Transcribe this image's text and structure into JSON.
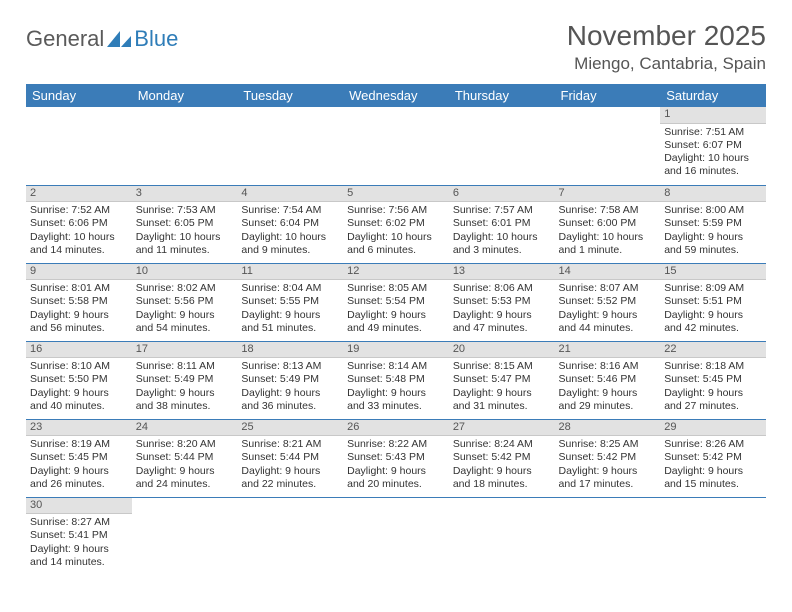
{
  "logo": {
    "part1": "General",
    "part2": "Blue"
  },
  "title": "November 2025",
  "location": "Miengo, Cantabria, Spain",
  "colors": {
    "header_bg": "#3b7cb8",
    "header_text": "#ffffff",
    "daynum_bg": "#e2e2e2",
    "row_border": "#3b7cb8",
    "logo_gray": "#5a5a5a",
    "logo_blue": "#2f7db8"
  },
  "weekdays": [
    "Sunday",
    "Monday",
    "Tuesday",
    "Wednesday",
    "Thursday",
    "Friday",
    "Saturday"
  ],
  "weeks": [
    [
      null,
      null,
      null,
      null,
      null,
      null,
      {
        "n": "1",
        "sr": "Sunrise: 7:51 AM",
        "ss": "Sunset: 6:07 PM",
        "dl": "Daylight: 10 hours and 16 minutes."
      }
    ],
    [
      {
        "n": "2",
        "sr": "Sunrise: 7:52 AM",
        "ss": "Sunset: 6:06 PM",
        "dl": "Daylight: 10 hours and 14 minutes."
      },
      {
        "n": "3",
        "sr": "Sunrise: 7:53 AM",
        "ss": "Sunset: 6:05 PM",
        "dl": "Daylight: 10 hours and 11 minutes."
      },
      {
        "n": "4",
        "sr": "Sunrise: 7:54 AM",
        "ss": "Sunset: 6:04 PM",
        "dl": "Daylight: 10 hours and 9 minutes."
      },
      {
        "n": "5",
        "sr": "Sunrise: 7:56 AM",
        "ss": "Sunset: 6:02 PM",
        "dl": "Daylight: 10 hours and 6 minutes."
      },
      {
        "n": "6",
        "sr": "Sunrise: 7:57 AM",
        "ss": "Sunset: 6:01 PM",
        "dl": "Daylight: 10 hours and 3 minutes."
      },
      {
        "n": "7",
        "sr": "Sunrise: 7:58 AM",
        "ss": "Sunset: 6:00 PM",
        "dl": "Daylight: 10 hours and 1 minute."
      },
      {
        "n": "8",
        "sr": "Sunrise: 8:00 AM",
        "ss": "Sunset: 5:59 PM",
        "dl": "Daylight: 9 hours and 59 minutes."
      }
    ],
    [
      {
        "n": "9",
        "sr": "Sunrise: 8:01 AM",
        "ss": "Sunset: 5:58 PM",
        "dl": "Daylight: 9 hours and 56 minutes."
      },
      {
        "n": "10",
        "sr": "Sunrise: 8:02 AM",
        "ss": "Sunset: 5:56 PM",
        "dl": "Daylight: 9 hours and 54 minutes."
      },
      {
        "n": "11",
        "sr": "Sunrise: 8:04 AM",
        "ss": "Sunset: 5:55 PM",
        "dl": "Daylight: 9 hours and 51 minutes."
      },
      {
        "n": "12",
        "sr": "Sunrise: 8:05 AM",
        "ss": "Sunset: 5:54 PM",
        "dl": "Daylight: 9 hours and 49 minutes."
      },
      {
        "n": "13",
        "sr": "Sunrise: 8:06 AM",
        "ss": "Sunset: 5:53 PM",
        "dl": "Daylight: 9 hours and 47 minutes."
      },
      {
        "n": "14",
        "sr": "Sunrise: 8:07 AM",
        "ss": "Sunset: 5:52 PM",
        "dl": "Daylight: 9 hours and 44 minutes."
      },
      {
        "n": "15",
        "sr": "Sunrise: 8:09 AM",
        "ss": "Sunset: 5:51 PM",
        "dl": "Daylight: 9 hours and 42 minutes."
      }
    ],
    [
      {
        "n": "16",
        "sr": "Sunrise: 8:10 AM",
        "ss": "Sunset: 5:50 PM",
        "dl": "Daylight: 9 hours and 40 minutes."
      },
      {
        "n": "17",
        "sr": "Sunrise: 8:11 AM",
        "ss": "Sunset: 5:49 PM",
        "dl": "Daylight: 9 hours and 38 minutes."
      },
      {
        "n": "18",
        "sr": "Sunrise: 8:13 AM",
        "ss": "Sunset: 5:49 PM",
        "dl": "Daylight: 9 hours and 36 minutes."
      },
      {
        "n": "19",
        "sr": "Sunrise: 8:14 AM",
        "ss": "Sunset: 5:48 PM",
        "dl": "Daylight: 9 hours and 33 minutes."
      },
      {
        "n": "20",
        "sr": "Sunrise: 8:15 AM",
        "ss": "Sunset: 5:47 PM",
        "dl": "Daylight: 9 hours and 31 minutes."
      },
      {
        "n": "21",
        "sr": "Sunrise: 8:16 AM",
        "ss": "Sunset: 5:46 PM",
        "dl": "Daylight: 9 hours and 29 minutes."
      },
      {
        "n": "22",
        "sr": "Sunrise: 8:18 AM",
        "ss": "Sunset: 5:45 PM",
        "dl": "Daylight: 9 hours and 27 minutes."
      }
    ],
    [
      {
        "n": "23",
        "sr": "Sunrise: 8:19 AM",
        "ss": "Sunset: 5:45 PM",
        "dl": "Daylight: 9 hours and 26 minutes."
      },
      {
        "n": "24",
        "sr": "Sunrise: 8:20 AM",
        "ss": "Sunset: 5:44 PM",
        "dl": "Daylight: 9 hours and 24 minutes."
      },
      {
        "n": "25",
        "sr": "Sunrise: 8:21 AM",
        "ss": "Sunset: 5:44 PM",
        "dl": "Daylight: 9 hours and 22 minutes."
      },
      {
        "n": "26",
        "sr": "Sunrise: 8:22 AM",
        "ss": "Sunset: 5:43 PM",
        "dl": "Daylight: 9 hours and 20 minutes."
      },
      {
        "n": "27",
        "sr": "Sunrise: 8:24 AM",
        "ss": "Sunset: 5:42 PM",
        "dl": "Daylight: 9 hours and 18 minutes."
      },
      {
        "n": "28",
        "sr": "Sunrise: 8:25 AM",
        "ss": "Sunset: 5:42 PM",
        "dl": "Daylight: 9 hours and 17 minutes."
      },
      {
        "n": "29",
        "sr": "Sunrise: 8:26 AM",
        "ss": "Sunset: 5:42 PM",
        "dl": "Daylight: 9 hours and 15 minutes."
      }
    ],
    [
      {
        "n": "30",
        "sr": "Sunrise: 8:27 AM",
        "ss": "Sunset: 5:41 PM",
        "dl": "Daylight: 9 hours and 14 minutes."
      },
      null,
      null,
      null,
      null,
      null,
      null
    ]
  ]
}
